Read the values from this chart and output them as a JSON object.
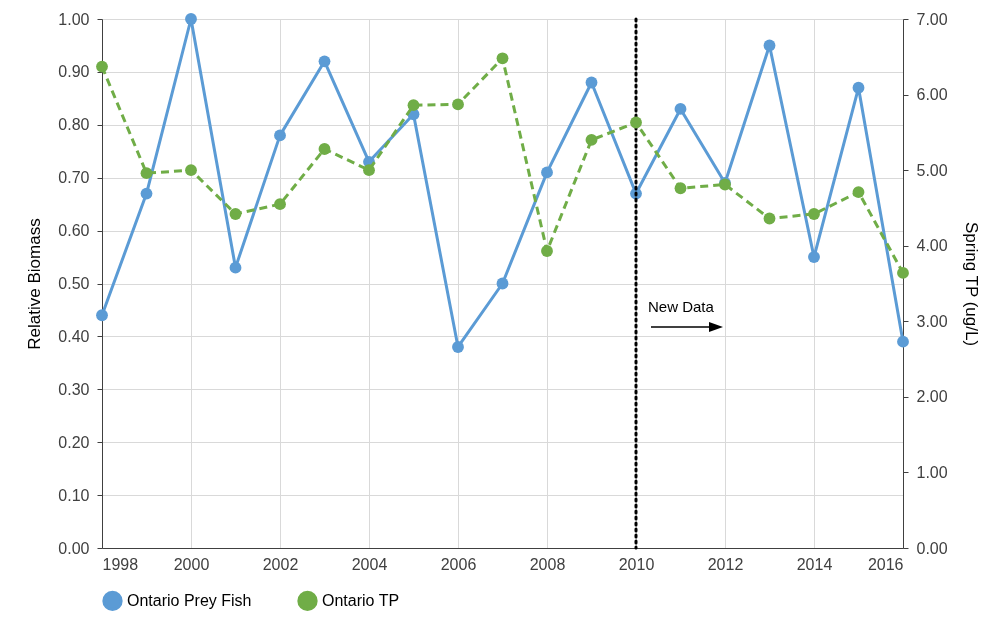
{
  "chart_data": {
    "type": "line",
    "xlabel": null,
    "ylabel": "Relative Biomass",
    "y2label": "Spring TP (ug/L)",
    "x": [
      1998,
      1999,
      2000,
      2001,
      2002,
      2003,
      2004,
      2005,
      2006,
      2007,
      2008,
      2009,
      2010,
      2011,
      2012,
      2013,
      2014,
      2015,
      2016
    ],
    "series": [
      {
        "name": "Ontario Prey Fish",
        "color": "#5b9bd5",
        "line_style": "solid",
        "values": [
          0.44,
          0.67,
          1.0,
          0.53,
          0.78,
          0.92,
          0.73,
          0.82,
          0.38,
          0.5,
          0.71,
          0.88,
          0.67,
          0.83,
          0.69,
          0.95,
          0.55,
          0.87,
          0.39
        ]
      },
      {
        "name": "Ontario TP",
        "color": "#70ad47",
        "line_style": "dashed",
        "axis": "y2",
        "values": [
          6.37,
          4.96,
          5.0,
          4.42,
          4.55,
          5.28,
          5.0,
          5.86,
          5.87,
          6.48,
          3.93,
          5.4,
          5.63,
          4.76,
          4.81,
          4.36,
          4.42,
          4.71,
          3.64
        ]
      }
    ],
    "xlim": [
      1998,
      2016
    ],
    "xticks": [
      1998,
      2000,
      2002,
      2004,
      2006,
      2008,
      2010,
      2012,
      2014,
      2016
    ],
    "ylim": [
      0,
      1
    ],
    "yticks": [
      {
        "value": 0,
        "label": "0.00"
      },
      {
        "value": 0.1,
        "label": "0.10"
      },
      {
        "value": 0.2,
        "label": "0.20"
      },
      {
        "value": 0.3,
        "label": "0.30"
      },
      {
        "value": 0.4,
        "label": "0.40"
      },
      {
        "value": 0.5,
        "label": "0.50"
      },
      {
        "value": 0.6,
        "label": "0.60"
      },
      {
        "value": 0.7,
        "label": "0.70"
      },
      {
        "value": 0.8,
        "label": "0.80"
      },
      {
        "value": 0.9,
        "label": "0.90"
      },
      {
        "value": 1,
        "label": "1.00"
      }
    ],
    "y2lim": [
      0,
      7
    ],
    "y2ticks": [
      {
        "value": 0,
        "label": "0.00"
      },
      {
        "value": 1,
        "label": "1.00"
      },
      {
        "value": 2,
        "label": "2.00"
      },
      {
        "value": 3,
        "label": "3.00"
      },
      {
        "value": 4,
        "label": "4.00"
      },
      {
        "value": 5,
        "label": "5.00"
      },
      {
        "value": 6,
        "label": "6.00"
      },
      {
        "value": 7,
        "label": "7.00"
      }
    ],
    "ref_lines": [
      {
        "axis": "x",
        "value": 2010,
        "color": "#000000",
        "line_style": "dotted"
      }
    ],
    "annotations": [
      "New Data"
    ],
    "grid": true,
    "legend": "bottom",
    "marker": "circle"
  }
}
